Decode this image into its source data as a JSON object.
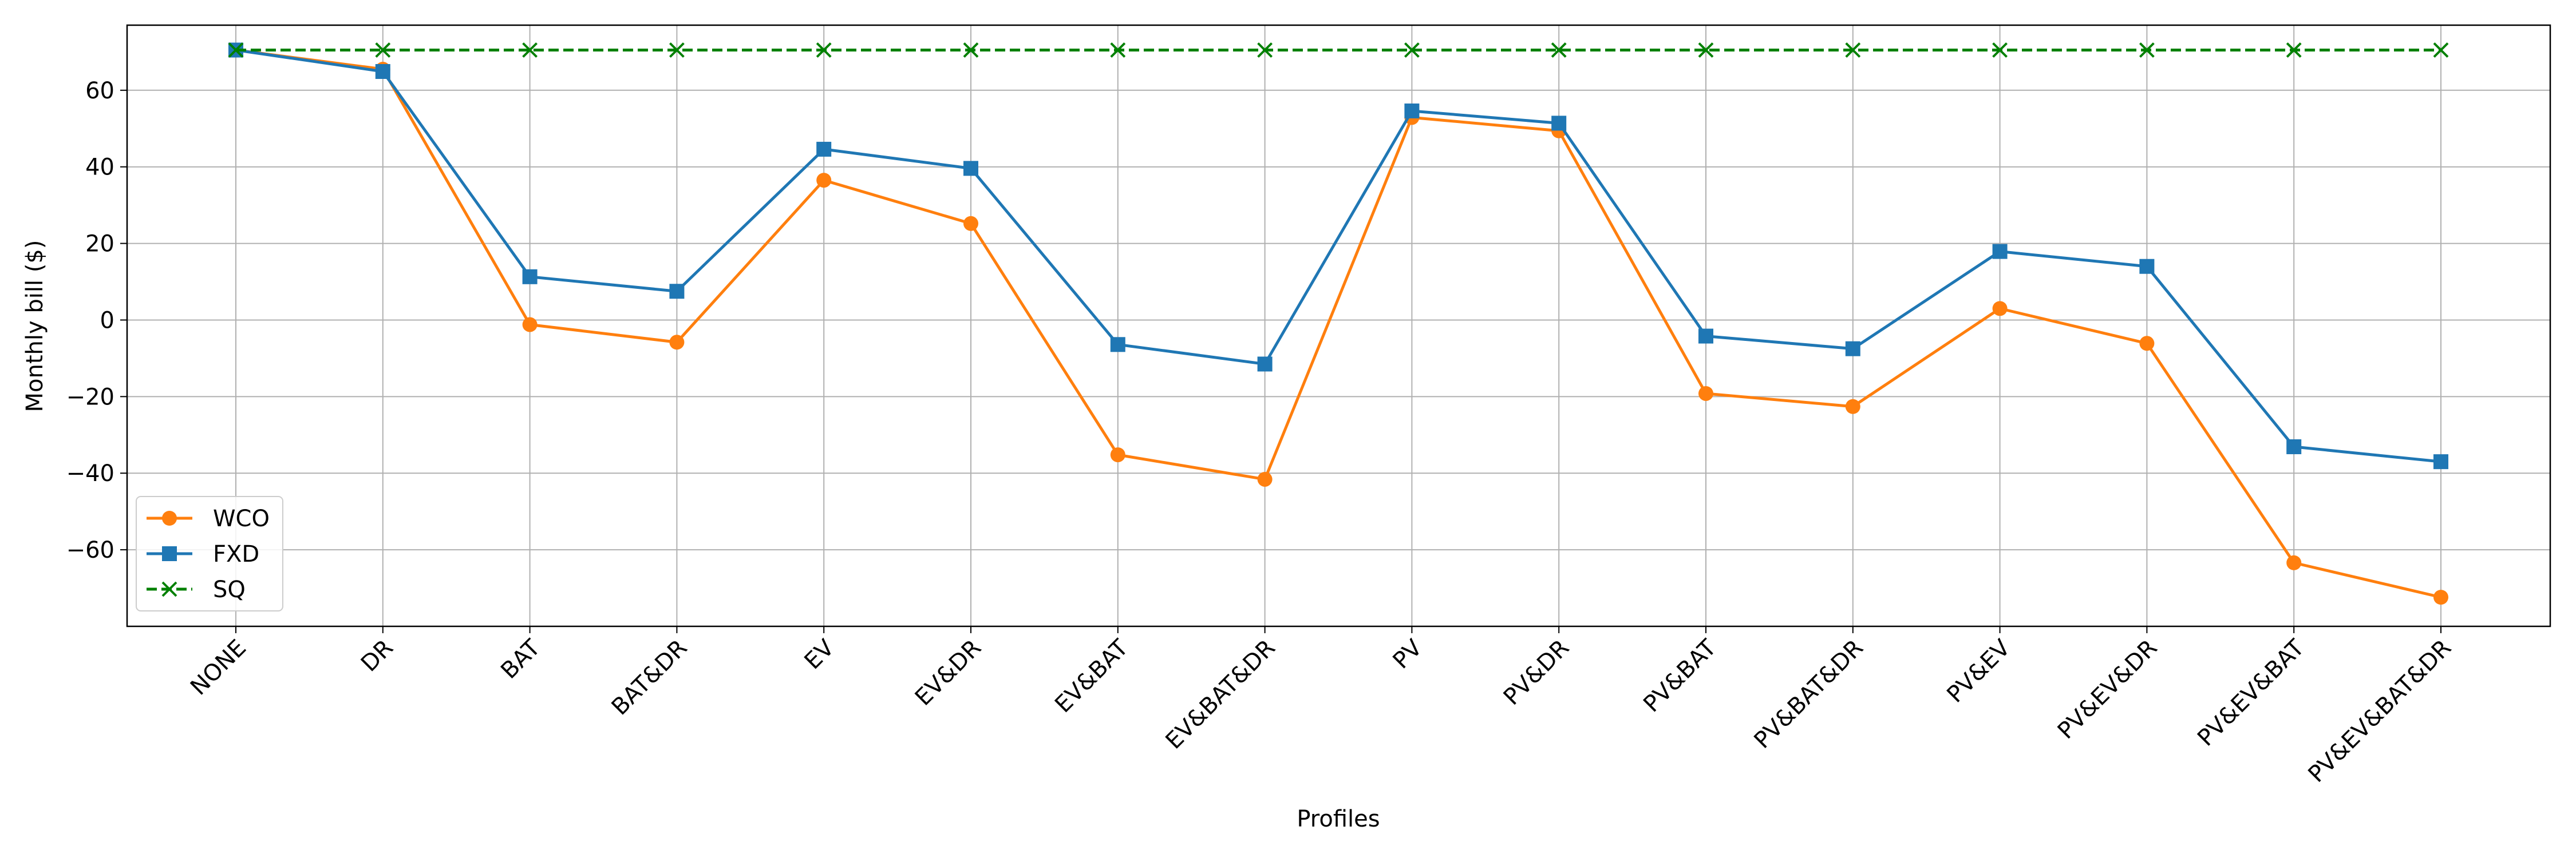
{
  "chart_data": {
    "type": "line",
    "xlabel": "Profiles",
    "ylabel": "Monthly bill ($)",
    "categories": [
      "NONE",
      "DR",
      "BAT",
      "BAT&DR",
      "EV",
      "EV&DR",
      "EV&BAT",
      "EV&BAT&DR",
      "PV",
      "PV&DR",
      "PV&BAT",
      "PV&BAT&DR",
      "PV&EV",
      "PV&EV&DR",
      "PV&EV&BAT",
      "PV&EV&BAT&DR"
    ],
    "ylim": [
      -80,
      77
    ],
    "yticks": [
      -60,
      -40,
      -20,
      0,
      20,
      40,
      60
    ],
    "ytick_labels": [
      "−60",
      "−40",
      "−20",
      "0",
      "20",
      "40",
      "60"
    ],
    "grid": true,
    "legend_position": "lower-left",
    "series": [
      {
        "name": "WCO",
        "color": "#ff7f0e",
        "marker": "circle",
        "linestyle": "solid",
        "values": [
          70.5,
          65.5,
          -1.2,
          -5.8,
          36.5,
          25.2,
          -35.2,
          -41.6,
          52.9,
          49.4,
          -19.2,
          -22.6,
          3.0,
          -6.1,
          -63.4,
          -72.4
        ]
      },
      {
        "name": "FXD",
        "color": "#1f77b4",
        "marker": "square",
        "linestyle": "solid",
        "values": [
          70.5,
          64.9,
          11.3,
          7.5,
          44.6,
          39.6,
          -6.4,
          -11.5,
          54.6,
          51.4,
          -4.2,
          -7.5,
          17.9,
          14.0,
          -33.1,
          -37.0
        ]
      },
      {
        "name": "SQ",
        "color": "#008000",
        "marker": "x",
        "linestyle": "dashed",
        "values": [
          70.5,
          70.5,
          70.5,
          70.5,
          70.5,
          70.5,
          70.5,
          70.5,
          70.5,
          70.5,
          70.5,
          70.5,
          70.5,
          70.5,
          70.5,
          70.5
        ]
      }
    ]
  }
}
